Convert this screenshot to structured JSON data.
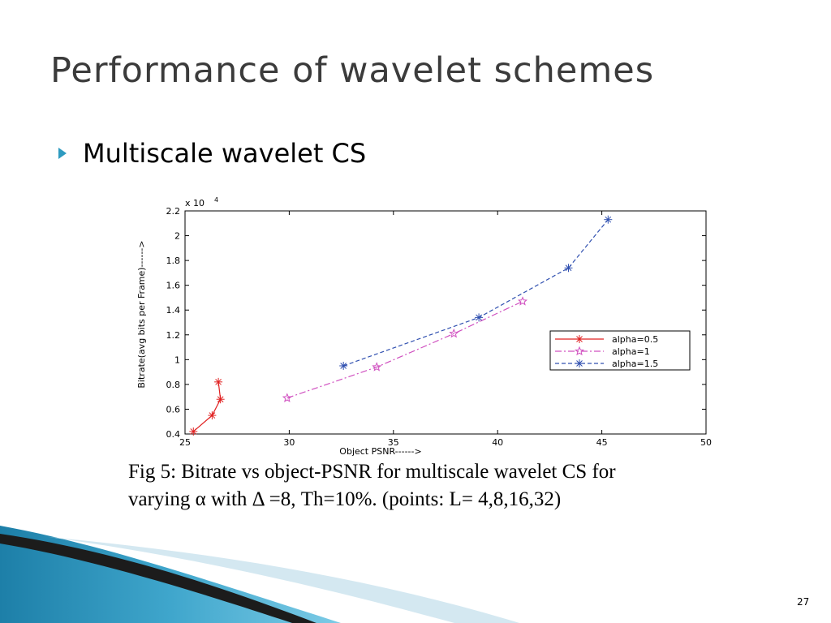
{
  "slide": {
    "title": "Performance of wavelet schemes",
    "bullet": "Multiscale wavelet CS",
    "caption_line1": "Fig 5: Bitrate vs object-PSNR for multiscale wavelet CS for",
    "caption_line2": "varying α with Δ =8, Th=10%. (points: L= 4,8,16,32)",
    "slide_number": "27"
  },
  "chart_data": {
    "type": "line",
    "xlabel": "Object PSNR------>",
    "ylabel": "Bitrate(avg bits per Frame)------>",
    "y_multiplier": "x 10",
    "y_exponent": "4",
    "xlim": [
      25,
      50
    ],
    "ylim": [
      0.4,
      2.2
    ],
    "x_ticks": [
      25,
      30,
      35,
      40,
      45,
      50
    ],
    "y_ticks": [
      0.4,
      0.6,
      0.8,
      1,
      1.2,
      1.4,
      1.6,
      1.8,
      2,
      2.2
    ],
    "x_tick_labels": [
      "25",
      "30",
      "35",
      "40",
      "45",
      "50"
    ],
    "y_tick_labels": [
      "0.4",
      "0.6",
      "0.8",
      "1",
      "1.2",
      "1.4",
      "1.6",
      "1.8",
      "2",
      "2.2"
    ],
    "legend_position": "right",
    "grid": false,
    "series": [
      {
        "name": "alpha=0.5",
        "color": "#e02020",
        "dash": "solid",
        "marker": "asterisk",
        "points": [
          [
            25.4,
            0.42
          ],
          [
            26.3,
            0.55
          ],
          [
            26.7,
            0.68
          ],
          [
            26.6,
            0.82
          ]
        ]
      },
      {
        "name": "alpha=1",
        "color": "#d050c0",
        "dash": "dashdot",
        "marker": "star",
        "points": [
          [
            29.9,
            0.69
          ],
          [
            34.2,
            0.94
          ],
          [
            37.9,
            1.21
          ],
          [
            41.2,
            1.47
          ]
        ]
      },
      {
        "name": "alpha=1.5",
        "color": "#3050b0",
        "dash": "dashed",
        "marker": "asterisk",
        "points": [
          [
            32.6,
            0.95
          ],
          [
            39.1,
            1.34
          ],
          [
            43.4,
            1.74
          ],
          [
            45.3,
            2.13
          ]
        ]
      }
    ]
  }
}
